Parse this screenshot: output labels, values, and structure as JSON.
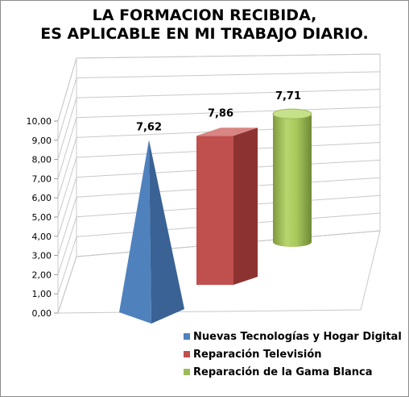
{
  "chart_data": {
    "type": "bar",
    "title_line1": "LA FORMACION RECIBIDA,",
    "title_line2": "ES APLICABLE EN MI TRABAJO DIARIO.",
    "ylim": [
      0,
      10
    ],
    "yticks": [
      "0,00",
      "1,00",
      "2,00",
      "3,00",
      "4,00",
      "5,00",
      "6,00",
      "7,00",
      "8,00",
      "9,00",
      "10,00"
    ],
    "grid": true,
    "legend_position": "bottom-right",
    "series": [
      {
        "name": "Nuevas Tecnologías y Hogar Digital",
        "value": 7.62,
        "label": "7,62",
        "shape": "pyramid",
        "color": "#4f81bd"
      },
      {
        "name": "Reparación Televisión",
        "value": 7.86,
        "label": "7,86",
        "shape": "box",
        "color": "#c0504d"
      },
      {
        "name": "Reparación de la Gama Blanca",
        "value": 7.71,
        "label": "7,71",
        "shape": "cylinder",
        "color": "#9bbb59"
      }
    ]
  }
}
